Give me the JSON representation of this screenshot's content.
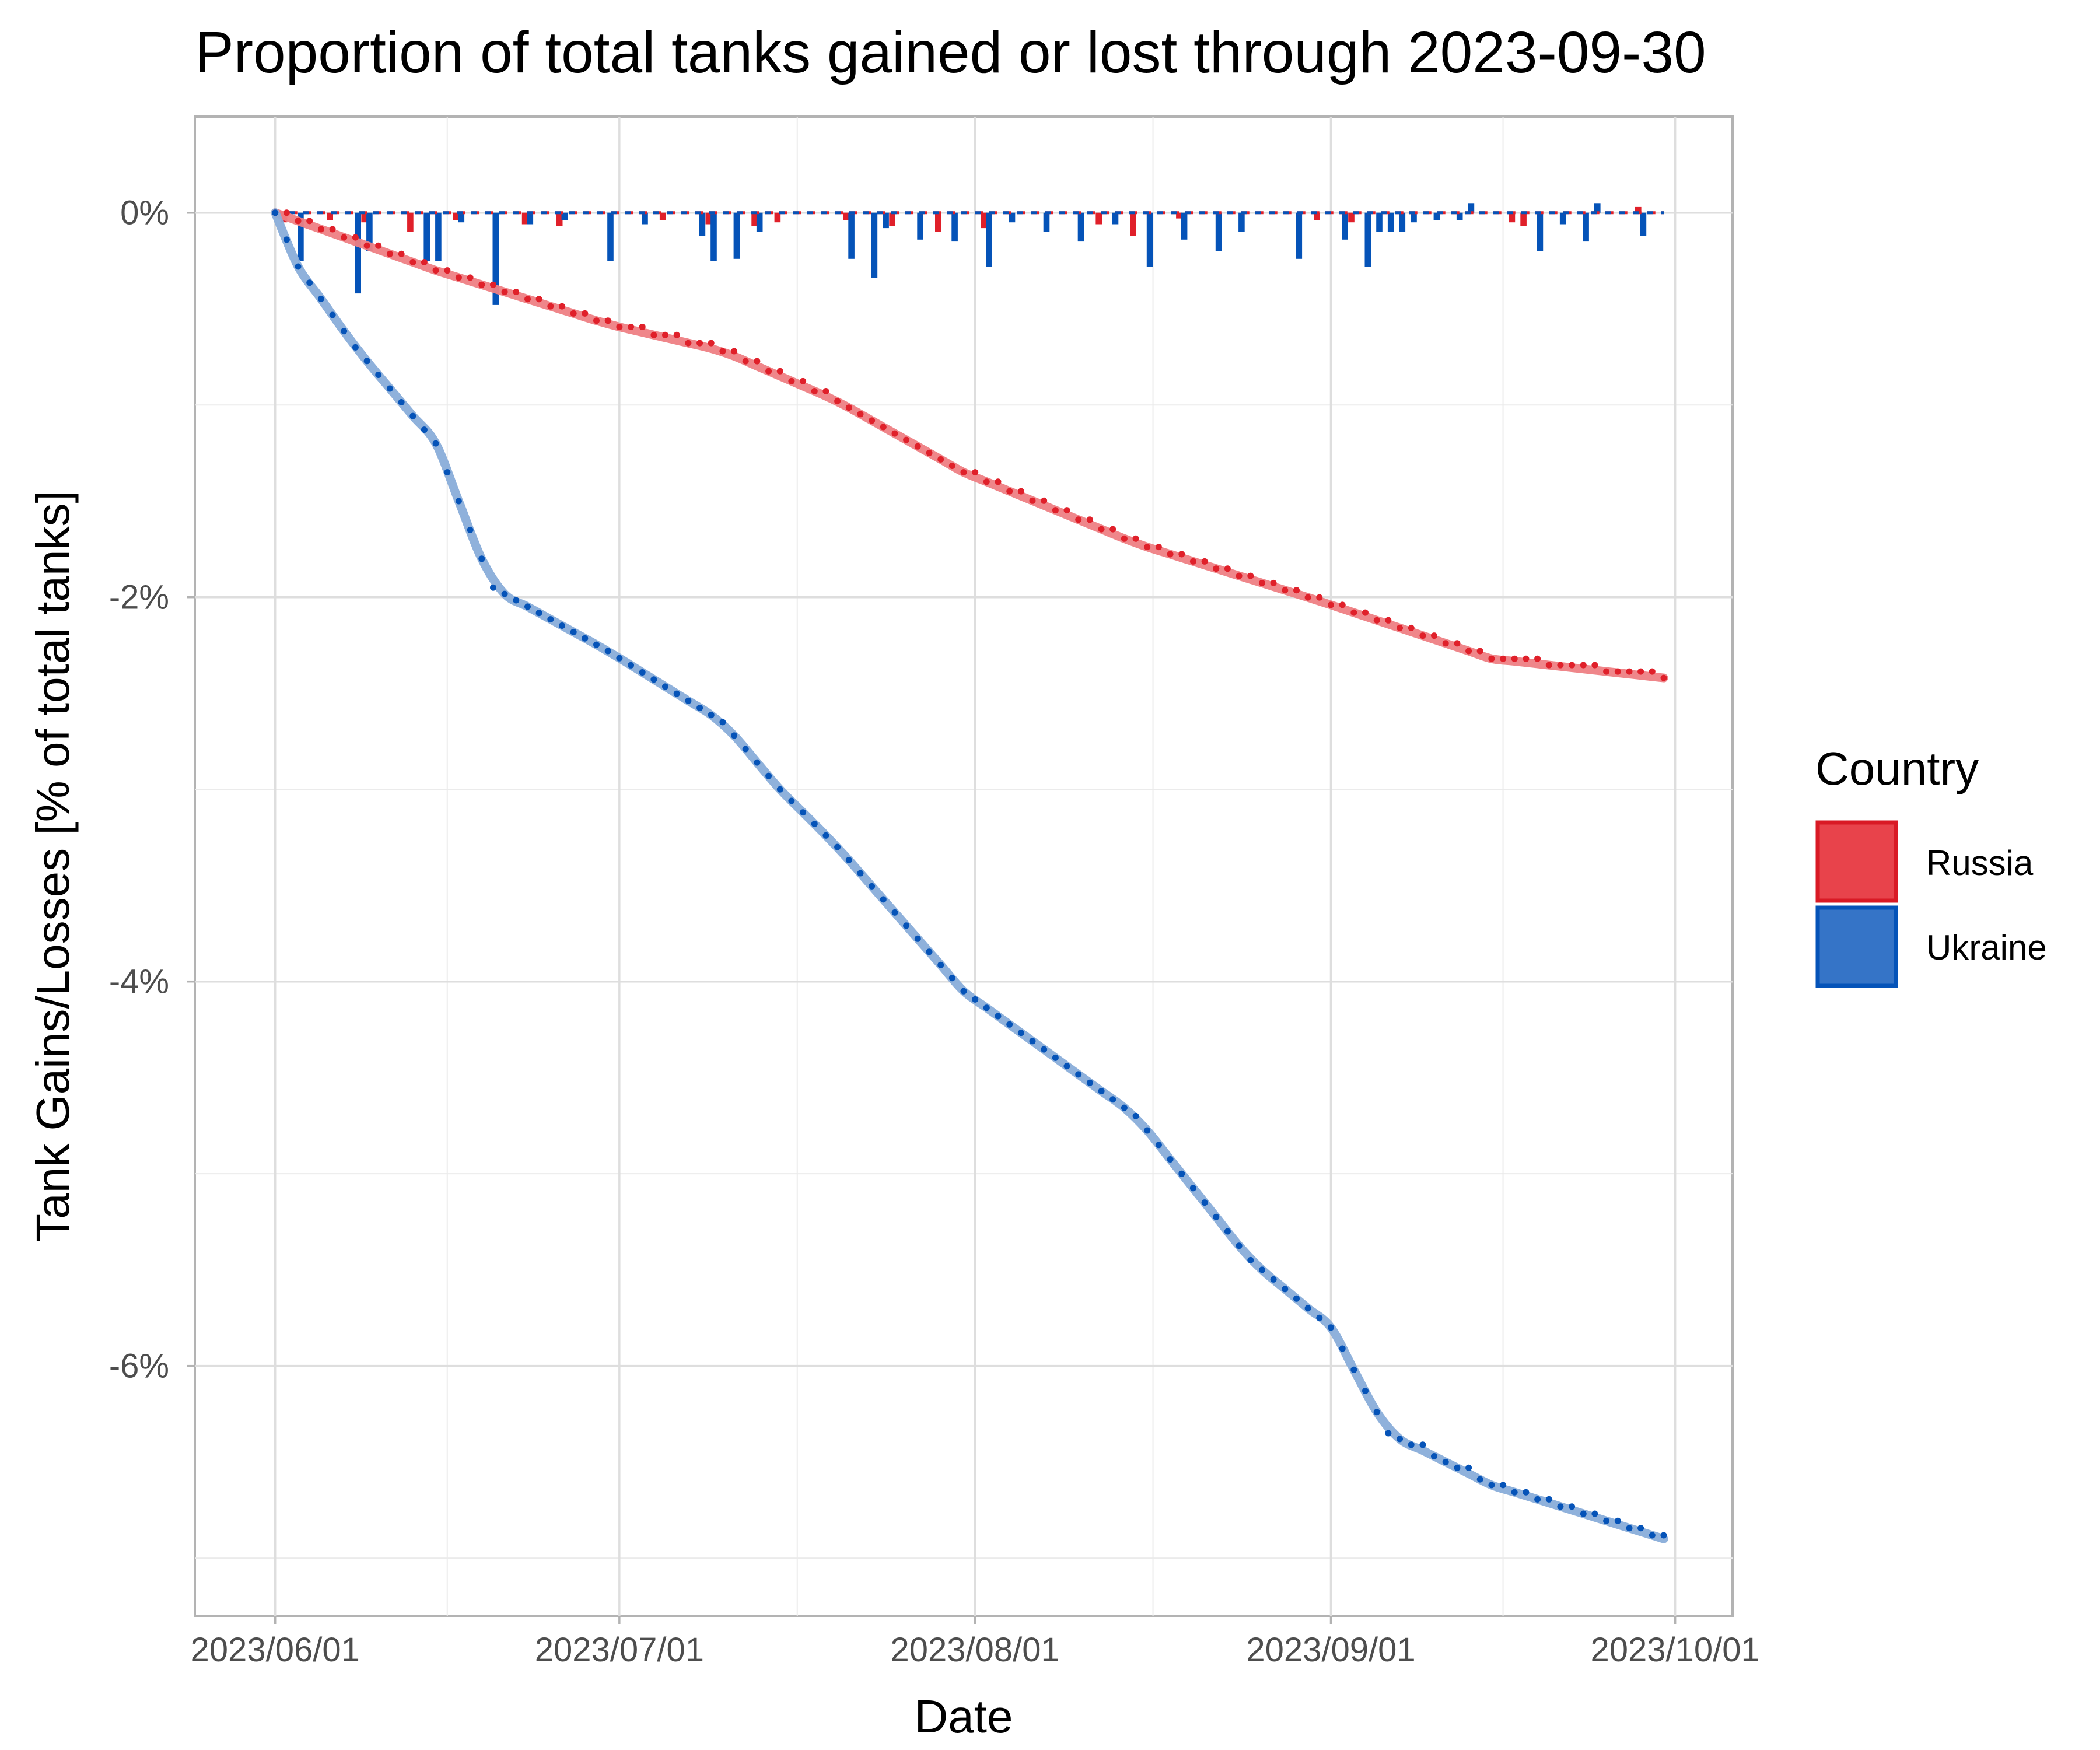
{
  "chart_data": {
    "type": "line",
    "title": "Proportion of total tanks gained or lost through 2023-09-30",
    "xlabel": "Date",
    "ylabel": "Tank Gains/Losses [% of total tanks]",
    "xlim": [
      "2023-05-25",
      "2023-10-06"
    ],
    "ylim": [
      -7.3,
      0.5
    ],
    "x_ticks": [
      "2023/06/01",
      "2023/07/01",
      "2023/08/01",
      "2023/09/01",
      "2023/10/01"
    ],
    "y_ticks": [
      0,
      -2,
      -4,
      -6
    ],
    "y_tick_labels": [
      "0%",
      "-2%",
      "-4%",
      "-6%"
    ],
    "grid": true,
    "legend": {
      "title": "Country",
      "position": "right",
      "entries": [
        {
          "label": "Russia",
          "color": "#e8434b",
          "stroke": "#d91a25"
        },
        {
          "label": "Ukraine",
          "color": "#3574c7",
          "stroke": "#0553b8"
        }
      ]
    },
    "series": [
      {
        "name": "Russia",
        "point_color": "#e0202a",
        "bar_color": "#e0202a",
        "smooth_color": "#ee7f84",
        "cumulative_keypoints": [
          {
            "x": "2023-06-01",
            "y": 0
          },
          {
            "x": "2023-06-08",
            "y": -0.15
          },
          {
            "x": "2023-06-15",
            "y": -0.3
          },
          {
            "x": "2023-06-30",
            "y": -0.58
          },
          {
            "x": "2023-07-10",
            "y": -0.72
          },
          {
            "x": "2023-07-20",
            "y": -0.98
          },
          {
            "x": "2023-07-31",
            "y": -1.35
          },
          {
            "x": "2023-08-15",
            "y": -1.72
          },
          {
            "x": "2023-08-31",
            "y": -2.02
          },
          {
            "x": "2023-09-15",
            "y": -2.32
          },
          {
            "x": "2023-09-30",
            "y": -2.42
          }
        ],
        "daily_changes": [
          {
            "x": "2023-06-02",
            "y": -0.05
          },
          {
            "x": "2023-06-06",
            "y": -0.04
          },
          {
            "x": "2023-06-09",
            "y": -0.05
          },
          {
            "x": "2023-06-13",
            "y": -0.1
          },
          {
            "x": "2023-06-17",
            "y": -0.04
          },
          {
            "x": "2023-06-23",
            "y": -0.06
          },
          {
            "x": "2023-06-26",
            "y": -0.07
          },
          {
            "x": "2023-07-05",
            "y": -0.04
          },
          {
            "x": "2023-07-09",
            "y": -0.06
          },
          {
            "x": "2023-07-13",
            "y": -0.07
          },
          {
            "x": "2023-07-15",
            "y": -0.05
          },
          {
            "x": "2023-07-21",
            "y": -0.04
          },
          {
            "x": "2023-07-25",
            "y": -0.07
          },
          {
            "x": "2023-07-29",
            "y": -0.1
          },
          {
            "x": "2023-08-02",
            "y": -0.08
          },
          {
            "x": "2023-08-12",
            "y": -0.06
          },
          {
            "x": "2023-08-15",
            "y": -0.12
          },
          {
            "x": "2023-08-19",
            "y": -0.03
          },
          {
            "x": "2023-08-31",
            "y": -0.04
          },
          {
            "x": "2023-09-03",
            "y": -0.05
          },
          {
            "x": "2023-09-17",
            "y": -0.05
          },
          {
            "x": "2023-09-18",
            "y": -0.07
          },
          {
            "x": "2023-09-28",
            "y": 0.03
          }
        ]
      },
      {
        "name": "Ukraine",
        "point_color": "#0553b8",
        "bar_color": "#0553b8",
        "smooth_color": "#89add9",
        "cumulative_keypoints": [
          {
            "x": "2023-06-01",
            "y": 0
          },
          {
            "x": "2023-06-03",
            "y": -0.28
          },
          {
            "x": "2023-06-08",
            "y": -0.7
          },
          {
            "x": "2023-06-15",
            "y": -1.2
          },
          {
            "x": "2023-06-20",
            "y": -1.95
          },
          {
            "x": "2023-06-30",
            "y": -2.28
          },
          {
            "x": "2023-07-10",
            "y": -2.65
          },
          {
            "x": "2023-07-15",
            "y": -3.0
          },
          {
            "x": "2023-07-20",
            "y": -3.3
          },
          {
            "x": "2023-07-31",
            "y": -4.05
          },
          {
            "x": "2023-08-15",
            "y": -4.7
          },
          {
            "x": "2023-08-25",
            "y": -5.45
          },
          {
            "x": "2023-09-01",
            "y": -5.8
          },
          {
            "x": "2023-09-06",
            "y": -6.35
          },
          {
            "x": "2023-09-15",
            "y": -6.62
          },
          {
            "x": "2023-09-22",
            "y": -6.75
          },
          {
            "x": "2023-09-30",
            "y": -6.9
          }
        ],
        "daily_changes": [
          {
            "x": "2023-06-03",
            "y": -0.25
          },
          {
            "x": "2023-06-08",
            "y": -0.42
          },
          {
            "x": "2023-06-09",
            "y": -0.2
          },
          {
            "x": "2023-06-14",
            "y": -0.25
          },
          {
            "x": "2023-06-15",
            "y": -0.25
          },
          {
            "x": "2023-06-17",
            "y": -0.05
          },
          {
            "x": "2023-06-20",
            "y": -0.48
          },
          {
            "x": "2023-06-23",
            "y": -0.06
          },
          {
            "x": "2023-06-26",
            "y": -0.04
          },
          {
            "x": "2023-06-30",
            "y": -0.25
          },
          {
            "x": "2023-07-03",
            "y": -0.06
          },
          {
            "x": "2023-07-08",
            "y": -0.12
          },
          {
            "x": "2023-07-09",
            "y": -0.25
          },
          {
            "x": "2023-07-11",
            "y": -0.24
          },
          {
            "x": "2023-07-13",
            "y": -0.1
          },
          {
            "x": "2023-07-21",
            "y": -0.24
          },
          {
            "x": "2023-07-23",
            "y": -0.34
          },
          {
            "x": "2023-07-24",
            "y": -0.08
          },
          {
            "x": "2023-07-27",
            "y": -0.14
          },
          {
            "x": "2023-07-30",
            "y": -0.15
          },
          {
            "x": "2023-08-02",
            "y": -0.28
          },
          {
            "x": "2023-08-04",
            "y": -0.05
          },
          {
            "x": "2023-08-07",
            "y": -0.1
          },
          {
            "x": "2023-08-10",
            "y": -0.15
          },
          {
            "x": "2023-08-13",
            "y": -0.06
          },
          {
            "x": "2023-08-16",
            "y": -0.28
          },
          {
            "x": "2023-08-19",
            "y": -0.14
          },
          {
            "x": "2023-08-22",
            "y": -0.2
          },
          {
            "x": "2023-08-24",
            "y": -0.1
          },
          {
            "x": "2023-08-29",
            "y": -0.24
          },
          {
            "x": "2023-09-02",
            "y": -0.14
          },
          {
            "x": "2023-09-04",
            "y": -0.28
          },
          {
            "x": "2023-09-05",
            "y": -0.1
          },
          {
            "x": "2023-09-06",
            "y": -0.1
          },
          {
            "x": "2023-09-07",
            "y": -0.1
          },
          {
            "x": "2023-09-08",
            "y": -0.05
          },
          {
            "x": "2023-09-10",
            "y": -0.04
          },
          {
            "x": "2023-09-12",
            "y": -0.04
          },
          {
            "x": "2023-09-13",
            "y": 0.05
          },
          {
            "x": "2023-09-19",
            "y": -0.2
          },
          {
            "x": "2023-09-21",
            "y": -0.06
          },
          {
            "x": "2023-09-23",
            "y": -0.15
          },
          {
            "x": "2023-09-24",
            "y": 0.05
          },
          {
            "x": "2023-09-28",
            "y": -0.12
          }
        ]
      }
    ]
  }
}
